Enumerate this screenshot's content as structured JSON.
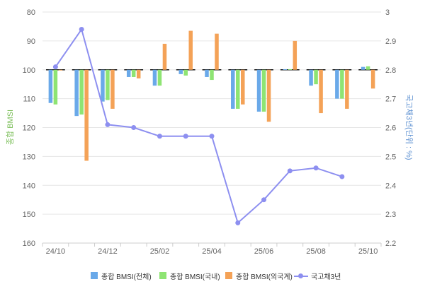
{
  "chart_data": {
    "type": "bar+line",
    "title": "",
    "x_ticks": [
      "24/10",
      "24/12",
      "25/02",
      "25/04",
      "25/06",
      "25/08",
      "25/10"
    ],
    "categories": [
      "24/10",
      "24/11",
      "24/12",
      "25/01",
      "25/02",
      "25/03",
      "25/04",
      "25/05",
      "25/06",
      "25/07",
      "25/08",
      "25/09",
      "25/10"
    ],
    "bar_baseline": 100,
    "y_left": {
      "label": "종합 BMSI",
      "range": [
        80,
        160
      ],
      "inverted": true,
      "ticks": [
        80,
        90,
        100,
        110,
        120,
        130,
        140,
        150,
        160
      ]
    },
    "y_right": {
      "label": "국고채3년(단위 : %)",
      "range": [
        2.2,
        3.0
      ],
      "ticks": [
        "2.2",
        "2.3",
        "2.4",
        "2.5",
        "2.6",
        "2.7",
        "2.8",
        "2.9",
        "3"
      ]
    },
    "series": [
      {
        "name": "종합 BMSI(전체)",
        "kind": "bar",
        "color": "#6aa9e9",
        "values": [
          111.5,
          116,
          111,
          102.5,
          105.5,
          101.5,
          102.5,
          113.5,
          114.5,
          99.8,
          105.5,
          110,
          99
        ]
      },
      {
        "name": "종합 BMSI(국내)",
        "kind": "bar",
        "color": "#8ee473",
        "values": [
          112,
          115.5,
          110.5,
          102.5,
          105.5,
          102,
          103.5,
          113.5,
          114.5,
          99.8,
          105,
          110,
          98.8
        ]
      },
      {
        "name": "종합 BMSI(외국계)",
        "kind": "bar",
        "color": "#f4a257",
        "values": [
          100,
          131.5,
          113.5,
          103,
          91,
          86.5,
          87.5,
          112,
          118,
          90,
          115,
          113.5,
          106.5
        ]
      },
      {
        "name": "국고채3년",
        "kind": "line",
        "color": "#8d8ff0",
        "values": [
          2.81,
          2.94,
          2.61,
          2.6,
          2.57,
          2.57,
          2.57,
          2.27,
          2.35,
          2.45,
          2.46,
          2.43,
          null
        ]
      }
    ]
  }
}
